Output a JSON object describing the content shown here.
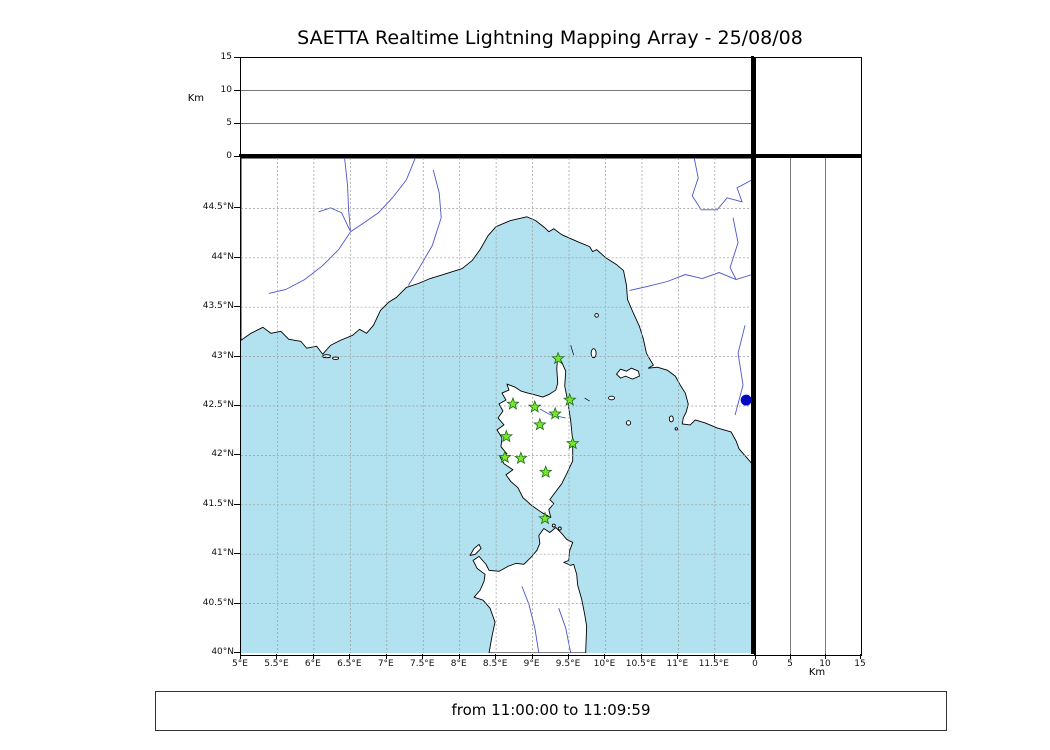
{
  "title": "SAETTA Realtime Lightning Mapping Array - 25/08/08",
  "footer_text": "from 11:00:00 to 11:09:59",
  "altitude_panel": {
    "unit_label": "Km",
    "ticks": [
      0,
      5,
      10,
      15
    ],
    "max": 15
  },
  "map_axes": {
    "lat_ticks": [
      {
        "label": "44.5°N",
        "value": 44.5
      },
      {
        "label": "44°N",
        "value": 44.0
      },
      {
        "label": "43.5°N",
        "value": 43.5
      },
      {
        "label": "43°N",
        "value": 43.0
      },
      {
        "label": "42.5°N",
        "value": 42.5
      },
      {
        "label": "42°N",
        "value": 42.0
      },
      {
        "label": "41.5°N",
        "value": 41.5
      },
      {
        "label": "41°N",
        "value": 41.0
      },
      {
        "label": "40.5°N",
        "value": 40.5
      },
      {
        "label": "40°N",
        "value": 40.0
      }
    ],
    "lon_ticks": [
      {
        "label": "5°E",
        "value": 5.0
      },
      {
        "label": "5.5°E",
        "value": 5.5
      },
      {
        "label": "6°E",
        "value": 6.0
      },
      {
        "label": "6.5°E",
        "value": 6.5
      },
      {
        "label": "7°E",
        "value": 7.0
      },
      {
        "label": "7.5°E",
        "value": 7.5
      },
      {
        "label": "8°E",
        "value": 8.0
      },
      {
        "label": "8.5°E",
        "value": 8.5
      },
      {
        "label": "9°E",
        "value": 9.0
      },
      {
        "label": "9.5°E",
        "value": 9.5
      },
      {
        "label": "10°E",
        "value": 10.0
      },
      {
        "label": "10.5°E",
        "value": 10.5
      },
      {
        "label": "11°E",
        "value": 11.0
      },
      {
        "label": "11.5°E",
        "value": 11.5
      }
    ]
  },
  "colors": {
    "sea_fill": "#b2e2ef",
    "land_fill": "#ffffff",
    "coast_stroke": "#000000",
    "river_stroke": "#4a55cc",
    "grid_stroke": "#999999",
    "station_fill": "#76e62e",
    "station_edge": "#1d6b12",
    "event_fill": "#0008c0"
  },
  "chart_data": {
    "type": "scatter",
    "title": "SAETTA Realtime Lightning Mapping Array - 25/08/08",
    "time_window": "from 11:00:00 to 11:09:59",
    "panels": {
      "top": "altitude (Km) vs longitude",
      "main": "latitude vs longitude map",
      "right": "altitude (Km) vs latitude"
    },
    "altitude_axis": {
      "label": "Km",
      "range": [
        0,
        15
      ],
      "ticks": [
        0,
        5,
        10,
        15
      ]
    },
    "map_bounds": {
      "lon_min": 5.0,
      "lon_max": 12.01,
      "lat_min": 40.0,
      "lat_max": 45.01
    },
    "stations": [
      {
        "lon": 9.35,
        "lat": 42.98
      },
      {
        "lon": 9.51,
        "lat": 42.56
      },
      {
        "lon": 8.73,
        "lat": 42.52
      },
      {
        "lon": 9.03,
        "lat": 42.49
      },
      {
        "lon": 9.31,
        "lat": 42.42
      },
      {
        "lon": 9.1,
        "lat": 42.31
      },
      {
        "lon": 8.64,
        "lat": 42.19
      },
      {
        "lon": 9.55,
        "lat": 42.12
      },
      {
        "lon": 8.62,
        "lat": 41.98
      },
      {
        "lon": 8.84,
        "lat": 41.97
      },
      {
        "lon": 9.18,
        "lat": 41.83
      },
      {
        "lon": 9.17,
        "lat": 41.36
      }
    ],
    "events": [
      {
        "lon": 11.93,
        "lat": 42.56
      }
    ]
  }
}
